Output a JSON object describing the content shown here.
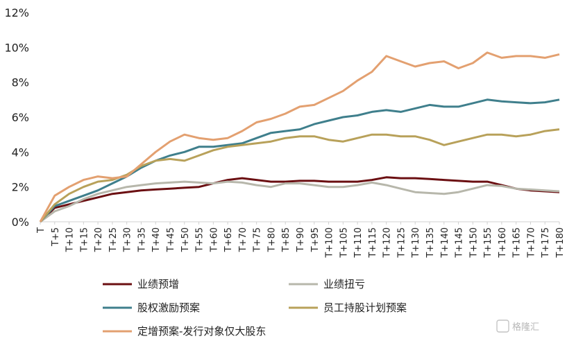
{
  "chart_data": {
    "type": "line",
    "xlabel": "",
    "ylabel": "",
    "ylim": [
      0,
      12
    ],
    "y_ticks": [
      "0%",
      "2%",
      "4%",
      "6%",
      "8%",
      "10%",
      "12%"
    ],
    "x_ticks": [
      "T",
      "T+5",
      "T+10",
      "T+15",
      "T+20",
      "T+25",
      "T+30",
      "T+35",
      "T+40",
      "T+45",
      "T+50",
      "T+55",
      "T+60",
      "T+65",
      "T+70",
      "T+75",
      "T+80",
      "T+85",
      "T+90",
      "T+95",
      "T+100",
      "T+105",
      "T+110",
      "T+115",
      "T+120",
      "T+125",
      "T+130",
      "T+135",
      "T+140",
      "T+145",
      "T+150",
      "T+155",
      "T+160",
      "T+165",
      "T+170",
      "T+175",
      "T+180"
    ],
    "x": [
      0,
      5,
      10,
      15,
      20,
      25,
      30,
      35,
      40,
      45,
      50,
      55,
      60,
      65,
      70,
      75,
      80,
      85,
      90,
      95,
      100,
      105,
      110,
      115,
      120,
      125,
      130,
      135,
      140,
      145,
      150,
      155,
      160,
      165,
      170,
      175,
      180
    ],
    "legend_position": "bottom",
    "series": [
      {
        "name": "业绩预增",
        "color": "#6b0f12",
        "values": [
          0,
          0.8,
          1.0,
          1.2,
          1.4,
          1.6,
          1.7,
          1.8,
          1.85,
          1.9,
          1.95,
          2.0,
          2.2,
          2.4,
          2.5,
          2.4,
          2.3,
          2.3,
          2.35,
          2.35,
          2.3,
          2.3,
          2.3,
          2.4,
          2.55,
          2.5,
          2.5,
          2.45,
          2.4,
          2.35,
          2.3,
          2.3,
          2.1,
          1.9,
          1.8,
          1.75,
          1.7
        ]
      },
      {
        "name": "业绩扭亏",
        "color": "#b7b7ab",
        "values": [
          0,
          0.6,
          0.9,
          1.3,
          1.6,
          1.8,
          2.0,
          2.1,
          2.2,
          2.25,
          2.3,
          2.25,
          2.2,
          2.3,
          2.25,
          2.1,
          2.0,
          2.2,
          2.2,
          2.1,
          2.0,
          2.0,
          2.1,
          2.25,
          2.1,
          1.9,
          1.7,
          1.65,
          1.6,
          1.7,
          1.9,
          2.1,
          2.05,
          1.9,
          1.85,
          1.8,
          1.75
        ]
      },
      {
        "name": "股权激励预案",
        "color": "#3f7f8c",
        "values": [
          0,
          0.9,
          1.2,
          1.5,
          1.8,
          2.2,
          2.6,
          3.1,
          3.5,
          3.8,
          4.0,
          4.3,
          4.3,
          4.4,
          4.5,
          4.8,
          5.1,
          5.2,
          5.3,
          5.6,
          5.8,
          6.0,
          6.1,
          6.3,
          6.4,
          6.3,
          6.5,
          6.7,
          6.6,
          6.6,
          6.8,
          7.0,
          6.9,
          6.85,
          6.8,
          6.85,
          7.0
        ]
      },
      {
        "name": "员工持股计划预案",
        "color": "#b8a15a",
        "values": [
          0,
          1.0,
          1.6,
          2.0,
          2.3,
          2.4,
          2.7,
          3.2,
          3.5,
          3.6,
          3.5,
          3.8,
          4.1,
          4.3,
          4.4,
          4.5,
          4.6,
          4.8,
          4.9,
          4.9,
          4.7,
          4.6,
          4.8,
          5.0,
          5.0,
          4.9,
          4.9,
          4.7,
          4.4,
          4.6,
          4.8,
          5.0,
          5.0,
          4.9,
          5.0,
          5.2,
          5.3
        ]
      },
      {
        "name": "定增预案-发行对象仅大股东",
        "color": "#e3a070",
        "values": [
          0,
          1.5,
          2.0,
          2.4,
          2.6,
          2.5,
          2.6,
          3.3,
          4.0,
          4.6,
          5.0,
          4.8,
          4.7,
          4.8,
          5.2,
          5.7,
          5.9,
          6.2,
          6.6,
          6.7,
          7.1,
          7.5,
          8.1,
          8.6,
          9.5,
          9.2,
          8.9,
          9.1,
          9.2,
          8.8,
          9.1,
          9.7,
          9.4,
          9.5,
          9.5,
          9.4,
          9.6
        ]
      }
    ]
  },
  "watermark": "格隆汇"
}
